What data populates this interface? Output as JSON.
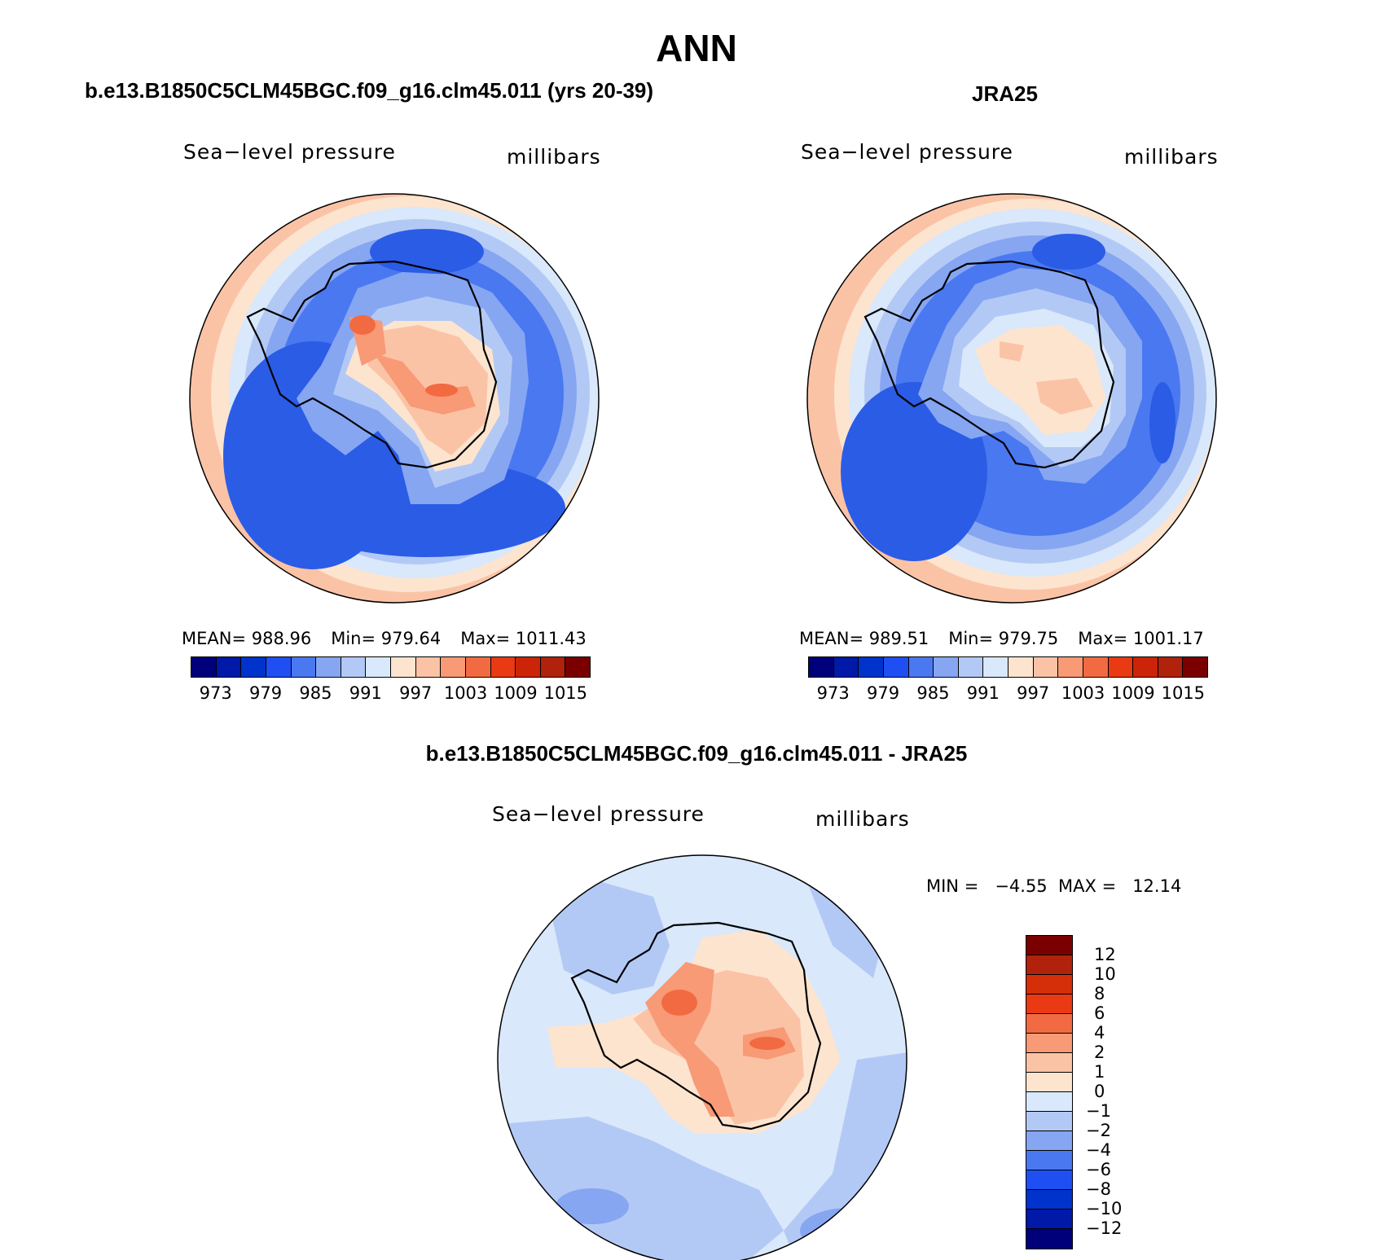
{
  "figure": {
    "title": "ANN"
  },
  "panels": {
    "model": {
      "title": "b.e13.B1850C5CLM45BGC.f09_g16.clm45.011 (yrs 20-39)",
      "left_label": "Sea−level pressure",
      "right_label": "millibars",
      "mean_text": "MEAN= 988.96",
      "min_text": "Min= 979.64",
      "max_text": "Max= 1011.43"
    },
    "obs": {
      "title": "JRA25",
      "left_label": "Sea−level pressure",
      "right_label": "millibars",
      "mean_text": "MEAN= 989.51",
      "min_text": "Min= 979.75",
      "max_text": "Max= 1001.17"
    },
    "diff": {
      "title": "b.e13.B1850C5CLM45BGC.f09_g16.clm45.011 - JRA25",
      "left_label": "Sea−level pressure",
      "right_label": "millibars",
      "minmax_text": "MIN =   −4.55  MAX =   12.14"
    }
  },
  "colorbars": {
    "slp": {
      "colors": [
        "#00007a",
        "#0019a8",
        "#0033cc",
        "#1f4ff2",
        "#4a78f0",
        "#86a6f2",
        "#b3c9f5",
        "#d9e8fb",
        "#fde4cf",
        "#fbc3a6",
        "#f79a75",
        "#f26a42",
        "#ea3a14",
        "#cc2408",
        "#b0220c",
        "#7a0000"
      ],
      "labels": [
        "973",
        "979",
        "985",
        "991",
        "997",
        "1003",
        "1009",
        "1015"
      ]
    },
    "diff": {
      "colors": [
        "#7a0000",
        "#b0220c",
        "#d42f08",
        "#ea3a14",
        "#f26a42",
        "#f79a75",
        "#fbc3a6",
        "#fde4cf",
        "#d9e8fb",
        "#b3c9f5",
        "#86a6f2",
        "#4a78f0",
        "#1f4ff2",
        "#0033cc",
        "#0019a8",
        "#00007a"
      ],
      "labels": [
        "12",
        "10",
        "8",
        "6",
        "4",
        "2",
        "1",
        "0",
        "−1",
        "−2",
        "−4",
        "−6",
        "−8",
        "−10",
        "−12"
      ]
    }
  },
  "map_palette": {
    "ocean_deep": "#2b5ce6",
    "ocean_mid": "#4a78f0",
    "ocean_light": "#86a6f2",
    "ring_pale": "#b3c9f5",
    "ring_paler": "#d9e8fb",
    "ring_peach": "#fde4cf",
    "ring_salmon": "#fbc3a6",
    "high_orange": "#f79a75",
    "high_red": "#f26a42",
    "coast": "#000000"
  }
}
